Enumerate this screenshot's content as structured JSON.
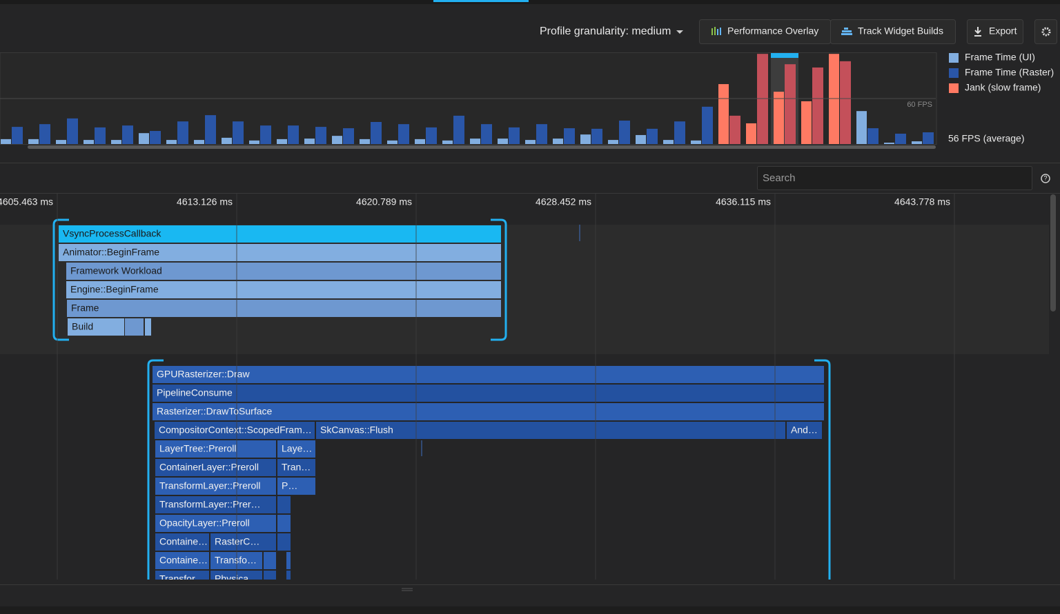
{
  "toolbar": {
    "granularity": "Profile granularity: medium",
    "performance_overlay": "Performance Overlay",
    "track_widget_builds": "Track Widget Builds",
    "export": "Export"
  },
  "chart_data": {
    "type": "bar",
    "series": [
      {
        "name": "Frame Time (UI)",
        "color": "#82aee0",
        "values": [
          1.8,
          1.8,
          1.5,
          1.5,
          1.5,
          4.0,
          1.5,
          1.5,
          2.3,
          1.3,
          1.8,
          2.0,
          3.0,
          1.8,
          1.3,
          1.8,
          1.3,
          2.0,
          2.0,
          1.5,
          2.0,
          3.5,
          1.5,
          3.3,
          1.5,
          1.3,
          22.0,
          7.6,
          19.2,
          15.7,
          33.1,
          12.1,
          0.5,
          1.0
        ]
      },
      {
        "name": "Frame Time (Raster)",
        "color": "#2a56a8",
        "values": [
          6.3,
          7.3,
          9.4,
          6.1,
          6.8,
          4.8,
          8.3,
          10.6,
          8.3,
          6.8,
          6.8,
          6.3,
          5.8,
          8.1,
          7.3,
          6.1,
          10.4,
          7.3,
          6.1,
          7.3,
          5.8,
          5.6,
          8.6,
          5.6,
          8.3,
          13.7,
          10.4,
          33.1,
          29.3,
          28.1,
          30.4,
          5.8,
          3.8,
          4.3
        ]
      }
    ],
    "jank": {
      "name": "Jank (slow frame)",
      "color": "#ff7a63",
      "raster_color": "#c4505a"
    },
    "ylim": [
      0,
      33.4
    ],
    "reference_line": {
      "value": 16.7,
      "label": "60 FPS"
    },
    "average_fps": "56 FPS (average)",
    "selected_frame": 28
  },
  "search": {
    "placeholder": "Search"
  },
  "timeline": {
    "xlim": [
      4603.017,
      4648.287
    ],
    "xticks": [
      {
        "value": 4605.463,
        "label": "4605.463 ms"
      },
      {
        "value": 4613.126,
        "label": "4613.126 ms"
      },
      {
        "value": 4620.789,
        "label": "4620.789 ms"
      },
      {
        "value": 4628.452,
        "label": "4628.452 ms"
      },
      {
        "value": 4636.115,
        "label": "4636.115 ms"
      },
      {
        "value": 4643.778,
        "label": "4643.778 ms"
      }
    ]
  },
  "flame": {
    "ui": [
      "VsyncProcessCallback",
      "Animator::BeginFrame",
      "Framework Workload",
      "Engine::BeginFrame",
      "Frame",
      "Build"
    ],
    "raster": [
      "GPURasterizer::Draw",
      "PipelineConsume",
      "Rasterizer::DrawToSurface",
      "CompositorContext::ScopedFram…",
      "SkCanvas::Flush",
      "And…",
      "LayerTree::Preroll",
      "Laye…",
      "ContainerLayer::Preroll",
      "Tran…",
      "TransformLayer::Preroll",
      "P…",
      "TransformLayer::Prer…",
      "OpacityLayer::Preroll",
      "Containe…",
      "RasterC…",
      "Containe…",
      "Transfo…",
      "Transfor…",
      "Physica…"
    ]
  }
}
